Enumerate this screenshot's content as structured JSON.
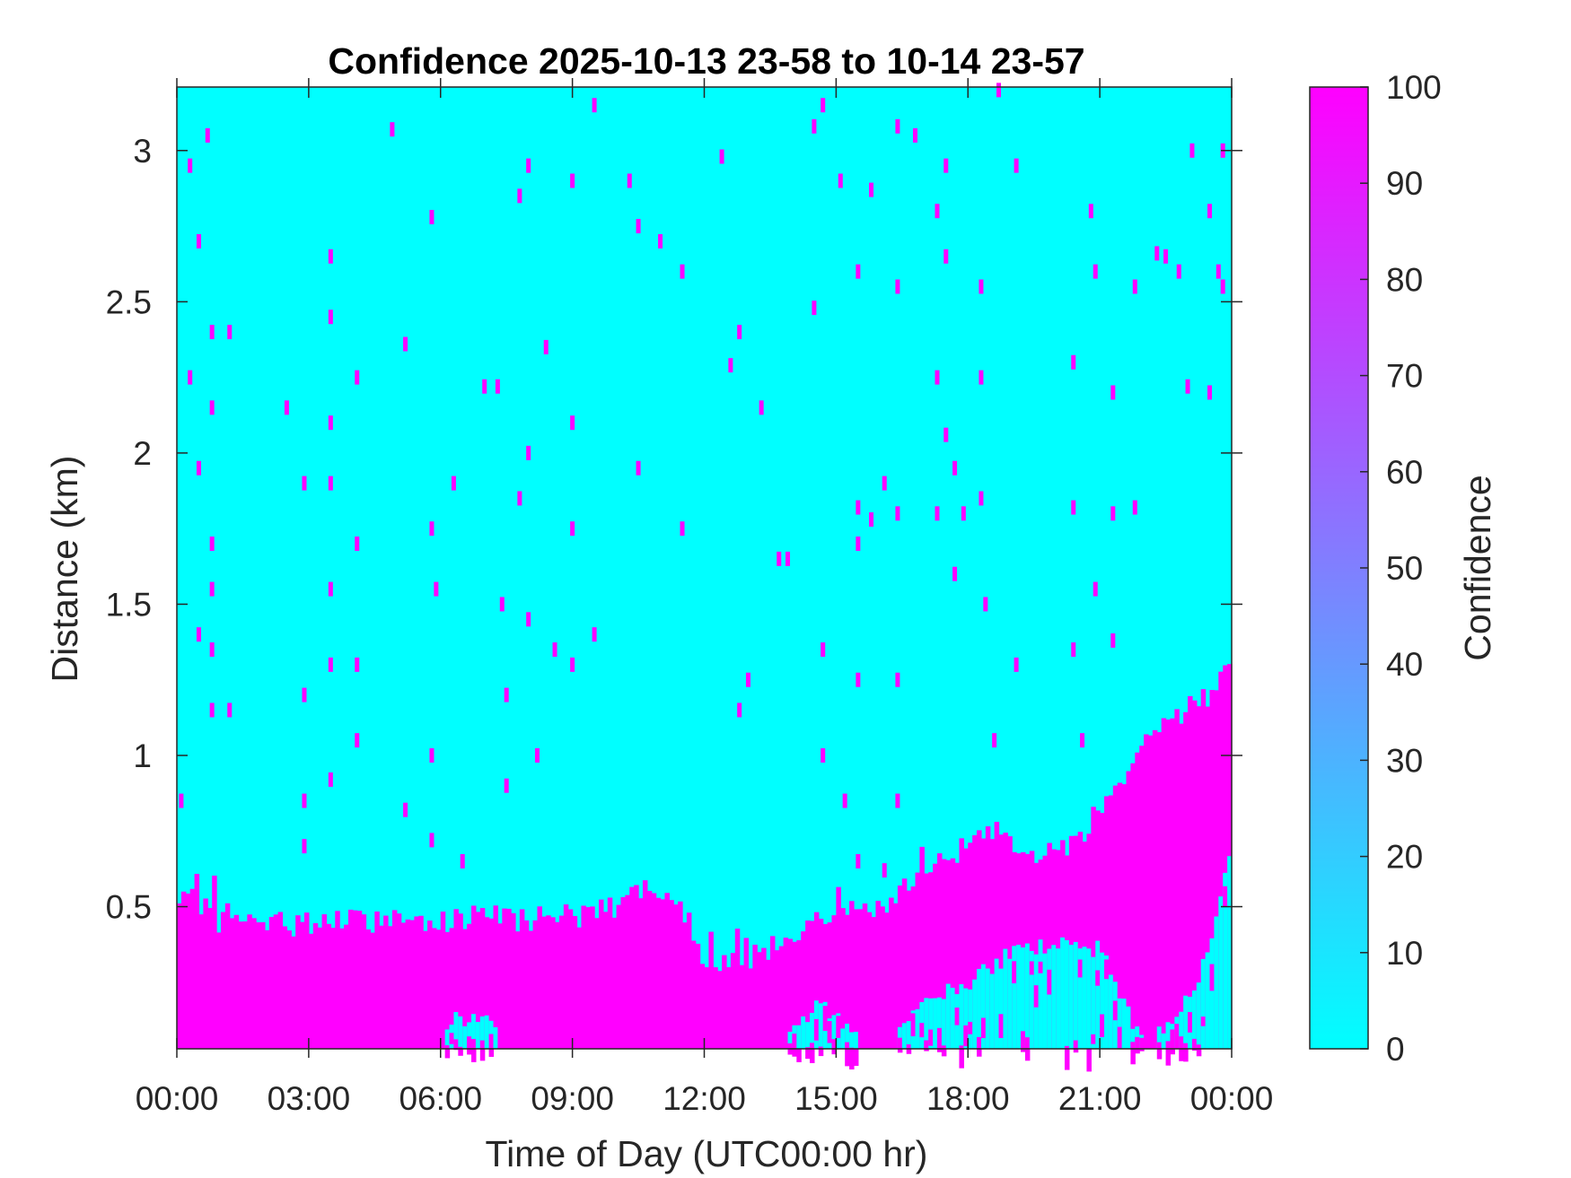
{
  "chart_data": {
    "type": "heatmap",
    "title": "Confidence 2025-10-13 23-58 to 10-14 23-57",
    "xlabel": "Time of Day (UTC00:00 hr)",
    "ylabel": "Distance (km)",
    "x_ticks": [
      "00:00",
      "03:00",
      "06:00",
      "09:00",
      "12:00",
      "15:00",
      "18:00",
      "21:00",
      "00:00"
    ],
    "x_tick_hours": [
      0,
      3,
      6,
      9,
      12,
      15,
      18,
      21,
      24
    ],
    "xlim_hours": [
      0,
      24
    ],
    "y_ticks": [
      "0.5",
      "1",
      "1.5",
      "2",
      "2.5",
      "3"
    ],
    "y_tick_values": [
      0.5,
      1,
      1.5,
      2,
      2.5,
      3
    ],
    "ylim_km": [
      0.03,
      3.21
    ],
    "colorbar": {
      "label": "Confidence",
      "range": [
        0,
        100
      ],
      "ticks": [
        "0",
        "10",
        "20",
        "30",
        "40",
        "50",
        "60",
        "70",
        "80",
        "90",
        "100"
      ],
      "colors": [
        "#00ffff",
        "#ff00ff"
      ]
    },
    "background_confidence": 0,
    "high_confidence": 100,
    "high_confidence_layer_top_km": {
      "hours": [
        0,
        0.5,
        1,
        2,
        3,
        4,
        5,
        6,
        7,
        8,
        9,
        10,
        10.5,
        11.5,
        12,
        13,
        14,
        15,
        16,
        16.5,
        17,
        17.5,
        18,
        18.5,
        19,
        19.5,
        20,
        20.5,
        21,
        21.5,
        22,
        22.5,
        23,
        23.5,
        24
      ],
      "values": [
        0.5,
        0.52,
        0.45,
        0.44,
        0.45,
        0.45,
        0.46,
        0.46,
        0.46,
        0.46,
        0.47,
        0.5,
        0.55,
        0.5,
        0.33,
        0.32,
        0.4,
        0.47,
        0.5,
        0.55,
        0.6,
        0.65,
        0.72,
        0.76,
        0.72,
        0.66,
        0.68,
        0.72,
        0.8,
        0.9,
        1.05,
        1.12,
        1.15,
        1.2,
        1.3
      ]
    },
    "clear_region_bottom_km": {
      "hours": [
        0,
        6,
        6.3,
        7,
        7.5,
        13.8,
        14.5,
        16.2,
        17,
        18,
        19,
        20,
        21,
        22,
        23,
        23.5,
        24
      ],
      "values": [
        0.03,
        0.03,
        0.12,
        0.15,
        0.03,
        0.03,
        0.18,
        0.03,
        0.2,
        0.25,
        0.35,
        0.38,
        0.36,
        0.03,
        0.2,
        0.35,
        0.7
      ]
    },
    "scattered_points": [
      [
        0.3,
        2.95
      ],
      [
        0.7,
        3.05
      ],
      [
        0.5,
        2.7
      ],
      [
        0.8,
        2.4
      ],
      [
        1.2,
        2.4
      ],
      [
        0.3,
        2.25
      ],
      [
        0.8,
        2.15
      ],
      [
        2.5,
        2.15
      ],
      [
        0.5,
        1.95
      ],
      [
        0.8,
        1.7
      ],
      [
        0.8,
        1.55
      ],
      [
        0.5,
        1.4
      ],
      [
        0.8,
        1.35
      ],
      [
        0.8,
        1.15
      ],
      [
        1.2,
        1.15
      ],
      [
        0.1,
        0.85
      ],
      [
        2.9,
        1.9
      ],
      [
        2.9,
        1.2
      ],
      [
        2.9,
        0.85
      ],
      [
        2.9,
        0.7
      ],
      [
        3.5,
        2.65
      ],
      [
        3.5,
        2.45
      ],
      [
        3.5,
        2.1
      ],
      [
        3.5,
        1.9
      ],
      [
        3.5,
        1.55
      ],
      [
        3.5,
        1.3
      ],
      [
        3.5,
        0.92
      ],
      [
        4.1,
        2.25
      ],
      [
        4.1,
        1.7
      ],
      [
        4.1,
        1.3
      ],
      [
        4.1,
        1.05
      ],
      [
        4.9,
        3.07
      ],
      [
        5.2,
        2.36
      ],
      [
        5.2,
        0.82
      ],
      [
        5.8,
        2.78
      ],
      [
        5.8,
        1.75
      ],
      [
        5.8,
        1.0
      ],
      [
        5.8,
        0.72
      ],
      [
        5.9,
        1.55
      ],
      [
        6.3,
        1.9
      ],
      [
        6.5,
        0.65
      ],
      [
        7.0,
        2.22
      ],
      [
        7.3,
        2.22
      ],
      [
        7.4,
        1.5
      ],
      [
        7.5,
        0.9
      ],
      [
        7.5,
        1.2
      ],
      [
        7.8,
        2.85
      ],
      [
        7.8,
        1.85
      ],
      [
        8.0,
        2.95
      ],
      [
        8.0,
        2.0
      ],
      [
        8.0,
        1.45
      ],
      [
        8.2,
        1.0
      ],
      [
        8.4,
        2.35
      ],
      [
        8.6,
        1.35
      ],
      [
        9.0,
        2.9
      ],
      [
        9.0,
        2.1
      ],
      [
        9.0,
        1.75
      ],
      [
        9.0,
        1.3
      ],
      [
        9.5,
        3.15
      ],
      [
        9.5,
        1.4
      ],
      [
        10.3,
        2.9
      ],
      [
        10.5,
        2.75
      ],
      [
        10.5,
        1.95
      ],
      [
        11.0,
        2.7
      ],
      [
        11.5,
        2.6
      ],
      [
        11.5,
        1.75
      ],
      [
        12.4,
        2.98
      ],
      [
        12.6,
        2.29
      ],
      [
        12.8,
        2.4
      ],
      [
        12.8,
        1.15
      ],
      [
        13.0,
        1.25
      ],
      [
        13.3,
        2.15
      ],
      [
        13.7,
        1.65
      ],
      [
        13.9,
        1.65
      ],
      [
        14.5,
        2.48
      ],
      [
        14.5,
        3.08
      ],
      [
        14.7,
        3.15
      ],
      [
        14.7,
        1.35
      ],
      [
        14.7,
        1.0
      ],
      [
        15.1,
        2.9
      ],
      [
        15.2,
        0.85
      ],
      [
        15.5,
        2.6
      ],
      [
        15.5,
        1.82
      ],
      [
        15.5,
        1.7
      ],
      [
        15.5,
        1.25
      ],
      [
        15.5,
        0.65
      ],
      [
        15.8,
        2.87
      ],
      [
        15.8,
        1.78
      ],
      [
        16.1,
        1.9
      ],
      [
        16.1,
        0.62
      ],
      [
        16.4,
        3.08
      ],
      [
        16.4,
        2.55
      ],
      [
        16.4,
        1.8
      ],
      [
        16.4,
        1.25
      ],
      [
        16.4,
        0.85
      ],
      [
        16.8,
        3.05
      ],
      [
        17.3,
        2.8
      ],
      [
        17.3,
        2.25
      ],
      [
        17.3,
        1.8
      ],
      [
        17.5,
        2.95
      ],
      [
        17.5,
        2.65
      ],
      [
        17.5,
        2.06
      ],
      [
        17.7,
        1.95
      ],
      [
        17.7,
        1.6
      ],
      [
        17.9,
        1.8
      ],
      [
        18.3,
        2.55
      ],
      [
        18.3,
        2.25
      ],
      [
        18.3,
        1.85
      ],
      [
        18.4,
        1.5
      ],
      [
        18.6,
        1.05
      ],
      [
        18.7,
        3.2
      ],
      [
        19.1,
        1.3
      ],
      [
        19.1,
        2.95
      ],
      [
        20.4,
        2.3
      ],
      [
        20.4,
        1.82
      ],
      [
        20.4,
        1.35
      ],
      [
        20.6,
        1.05
      ],
      [
        20.8,
        2.8
      ],
      [
        20.9,
        2.6
      ],
      [
        20.9,
        1.55
      ],
      [
        21.3,
        2.2
      ],
      [
        21.3,
        1.8
      ],
      [
        21.3,
        1.38
      ],
      [
        21.8,
        2.55
      ],
      [
        21.8,
        1.82
      ],
      [
        22.3,
        2.66
      ],
      [
        22.5,
        2.65
      ],
      [
        22.8,
        2.6
      ],
      [
        23.0,
        2.22
      ],
      [
        23.1,
        3.0
      ],
      [
        23.5,
        2.8
      ],
      [
        23.5,
        2.2
      ],
      [
        23.7,
        2.6
      ],
      [
        23.8,
        2.55
      ],
      [
        23.8,
        3.0
      ]
    ]
  }
}
